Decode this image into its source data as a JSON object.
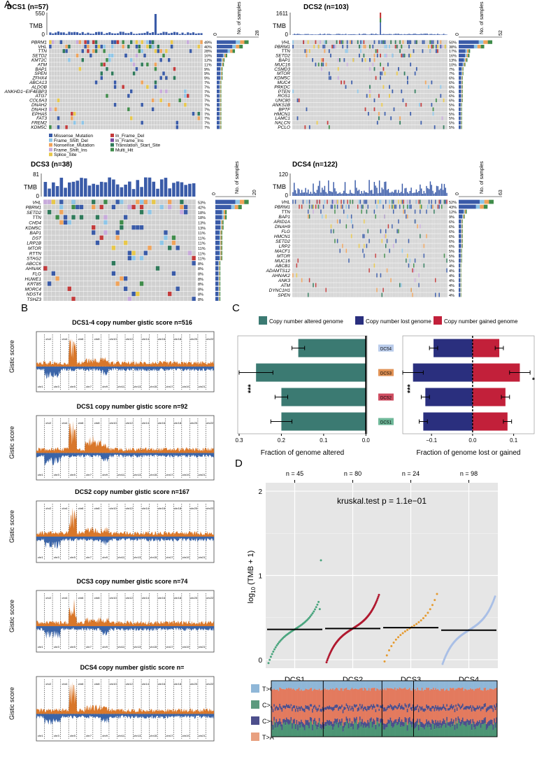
{
  "panel_letters": {
    "A": "A",
    "B": "B",
    "C": "C",
    "D": "D"
  },
  "colors": {
    "missense": "#3a5ba8",
    "frame_shift_del": "#8ec6e8",
    "nonsense": "#f0a35a",
    "frame_shift_ins": "#c8aadc",
    "splice": "#e8c84a",
    "in_frame_del": "#c43a3a",
    "in_frame_ins": "#7a4aa0",
    "tss": "#2f7a5a",
    "multi_hit": "#3f8c4a",
    "cell_bg": "#d0d0d0",
    "teal": "#3b7a72",
    "navy": "#2a2f7e",
    "crimson": "#c2203a",
    "orange": "#d9772a",
    "blue_gistic": "#3a64a8",
    "green_pt": "#4aa57e",
    "red_pt": "#b0182f",
    "orange_pt": "#e59a2f",
    "lblue_pt": "#a9bfe6",
    "panel_bg": "#e6e6e6"
  },
  "oncoplots": [
    {
      "title": "DCS1 (n=57)",
      "tmb_max": "550",
      "tmb_zero": "0",
      "tmb_label": "TMB",
      "bar_axis": [
        "0",
        "28"
      ],
      "bar_axis_label": "No. of samples",
      "genes": [
        "PBRM1",
        "VHL",
        "TTN",
        "SETD2",
        "KMT2C",
        "ATM",
        "BAP1",
        "SPEN",
        "ZFHX4",
        "ABCA13",
        "ALDOB",
        "ANKHD1−EIF4EBP3",
        "ATG7",
        "COL6A3",
        "DNAH2",
        "DNAH3",
        "EPHA5",
        "FAT3",
        "FREM2",
        "KDM5C"
      ],
      "pcts": [
        "49%",
        "40%",
        "28%",
        "16%",
        "12%",
        "11%",
        "9%",
        "9%",
        "9%",
        "7%",
        "7%",
        "7%",
        "7%",
        "7%",
        "7%",
        "7%",
        "7%",
        "7%",
        "7%",
        "7%"
      ]
    },
    {
      "title": "DCS2 (n=103)",
      "tmb_max": "1611",
      "tmb_zero": "0",
      "tmb_label": "TMB",
      "bar_axis": [
        "0",
        "52"
      ],
      "bar_axis_label": "No. of samples",
      "genes": [
        "VHL",
        "PBRM1",
        "TTN",
        "SETD2",
        "BAP1",
        "MUC16",
        "CSMD3",
        "MTOR",
        "KDM5C",
        "MUC4",
        "PRKDC",
        "PTEN",
        "ROS1",
        "UNC80",
        "ANKS1B",
        "BPTF",
        "HMCN1",
        "LAMC1",
        "NALCN",
        "PCLO"
      ],
      "pcts": [
        "50%",
        "38%",
        "17%",
        "16%",
        "13%",
        "10%",
        "7%",
        "7%",
        "6%",
        "6%",
        "6%",
        "6%",
        "6%",
        "6%",
        "5%",
        "5%",
        "5%",
        "5%",
        "5%",
        "5%"
      ]
    },
    {
      "title": "DCS3 (n=38)",
      "tmb_max": "81",
      "tmb_zero": "0",
      "tmb_label": "TMB",
      "bar_axis": [
        "0",
        "20"
      ],
      "bar_axis_label": "No. of samples",
      "genes": [
        "VHL",
        "PBRM1",
        "SETD2",
        "TTN",
        "CHD4",
        "KDM5C",
        "BAP1",
        "DST",
        "LRP1B",
        "MTOR",
        "RTTN",
        "STAG2",
        "ABCC6",
        "AHNAK",
        "FLG",
        "HUWE1",
        "KRT85",
        "MORC4",
        "NDST4",
        "TSHZ3"
      ],
      "pcts": [
        "53%",
        "42%",
        "18%",
        "18%",
        "13%",
        "13%",
        "11%",
        "11%",
        "11%",
        "11%",
        "11%",
        "11%",
        "8%",
        "8%",
        "8%",
        "8%",
        "8%",
        "8%",
        "8%",
        "8%"
      ]
    },
    {
      "title": "DCS4 (n=122)",
      "tmb_max": "120",
      "tmb_zero": "0",
      "tmb_label": "TMB",
      "bar_axis": [
        "0",
        "63"
      ],
      "bar_axis_label": "No. of samples",
      "genes": [
        "VHL",
        "PBRM1",
        "TTN",
        "BAP1",
        "ARID1A",
        "DNAH9",
        "FLG",
        "HMCN1",
        "SETD2",
        "LRP2",
        "MACF1",
        "MTOR",
        "MUC16",
        "ABCB1",
        "ADAMTS12",
        "AHNAK2",
        "ANK3",
        "ATM",
        "DYNC1H1",
        "SPEN"
      ],
      "pcts": [
        "52%",
        "43%",
        "12%",
        "9%",
        "6%",
        "6%",
        "6%",
        "6%",
        "6%",
        "6%",
        "5%",
        "5%",
        "5%",
        "4%",
        "4%",
        "4%",
        "4%",
        "4%",
        "4%",
        "4%"
      ]
    }
  ],
  "legend_left": [
    "Missense_Mutation",
    "Frame_Shift_Del",
    "Nonsense_Mutation",
    "Frame_Shift_Ins",
    "Splice_Site"
  ],
  "legend_right": [
    "In_Frame_Del",
    "In_Frame_Ins",
    "Translation_Start_Site",
    "Multi_Hit"
  ],
  "gistic_panels": [
    {
      "title": "DCS1-4 copy number gistic score n=516"
    },
    {
      "title": "DCS1 copy number gistic score n=92"
    },
    {
      "title": "DCS2 copy number gistic score n=167"
    },
    {
      "title": "DCS3 copy number gistic score n=74"
    },
    {
      "title": "DCS4 copy number gistic score n="
    }
  ],
  "gistic_ylabel": "Gistic score",
  "chart_data": [
    {
      "type": "bar",
      "title": "Fraction of genome altered",
      "legend": [
        "Copy number altered genome"
      ],
      "categories": [
        "DCS4",
        "DCS3",
        "DCS2",
        "DCS1"
      ],
      "values": [
        0.16,
        0.26,
        0.2,
        0.2
      ],
      "errors": [
        0.015,
        0.04,
        0.015,
        0.025
      ],
      "xlim": [
        0.3,
        0.0
      ],
      "xticks": [
        "0.3",
        "0.2",
        "0.1",
        "0.0"
      ],
      "annotation": "***"
    },
    {
      "type": "bar",
      "title": "Fraction of genome lost or gained",
      "legend": [
        "Copy number lost genome",
        "Copy number gained genome"
      ],
      "categories": [
        "DCS4",
        "DCS3",
        "DCS2",
        "DCS1"
      ],
      "series": [
        {
          "name": "Copy number lost genome",
          "values": [
            -0.095,
            -0.145,
            -0.115,
            -0.12
          ]
        },
        {
          "name": "Copy number gained genome",
          "values": [
            0.065,
            0.115,
            0.08,
            0.085
          ]
        }
      ],
      "xlim": [
        -0.17,
        0.15
      ],
      "xticks": [
        "−0.1",
        "0.0",
        "0.1"
      ],
      "annotation": "***",
      "annotation2": "*"
    },
    {
      "type": "scatter",
      "title": "kruskal.test p = 1.1e−01",
      "ylabel": "log10 (TMB + 1)",
      "ylim": [
        0,
        2
      ],
      "yticks": [
        "0",
        "1",
        "2"
      ],
      "categories": [
        "DCS1",
        "DCS2",
        "DCS3",
        "DCS4"
      ],
      "counts": [
        "n = 45",
        "n = 80",
        "n = 24",
        "n = 98"
      ],
      "medians": [
        0.36,
        0.37,
        0.38,
        0.35
      ]
    }
  ],
  "signature_legend": [
    "T>C",
    "C>A",
    "C>G",
    "T>A"
  ],
  "boxes": {
    "c_legend_1": "Copy number altered genome",
    "c_legend_2": "Copy number lost genome",
    "c_legend_3": "Copy number gained genome",
    "c_xlabel_1": "Fraction of genome altered",
    "c_xlabel_2": "Fraction of genome lost or gained",
    "d_stat": "kruskal.test p = 1.1e−01",
    "d_ylabel": "log",
    "d_ylabel_sub": "10",
    "d_ylabel_rest": " (TMB + 1)"
  }
}
